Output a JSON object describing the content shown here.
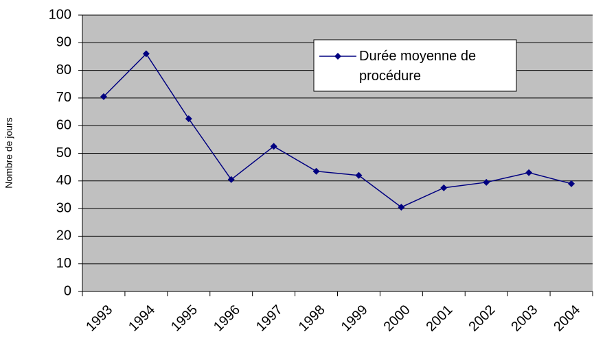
{
  "chart_data": {
    "type": "line",
    "ylabel": "Nombre de jours",
    "categories": [
      "1993",
      "1994",
      "1995",
      "1996",
      "1997",
      "1998",
      "1999",
      "2000",
      "2001",
      "2002",
      "2003",
      "2004"
    ],
    "series": [
      {
        "name": "Durée moyenne de procédure",
        "color": "#000080",
        "values": [
          70.5,
          86,
          62.5,
          40.5,
          52.5,
          43.5,
          42,
          30.5,
          37.5,
          39.5,
          43,
          39
        ]
      }
    ],
    "ylim": [
      0,
      100
    ],
    "yticks": [
      0,
      10,
      20,
      30,
      40,
      50,
      60,
      70,
      80,
      90,
      100
    ],
    "grid": true,
    "legend": "upper right",
    "plot_background": "#c0c0c0"
  }
}
